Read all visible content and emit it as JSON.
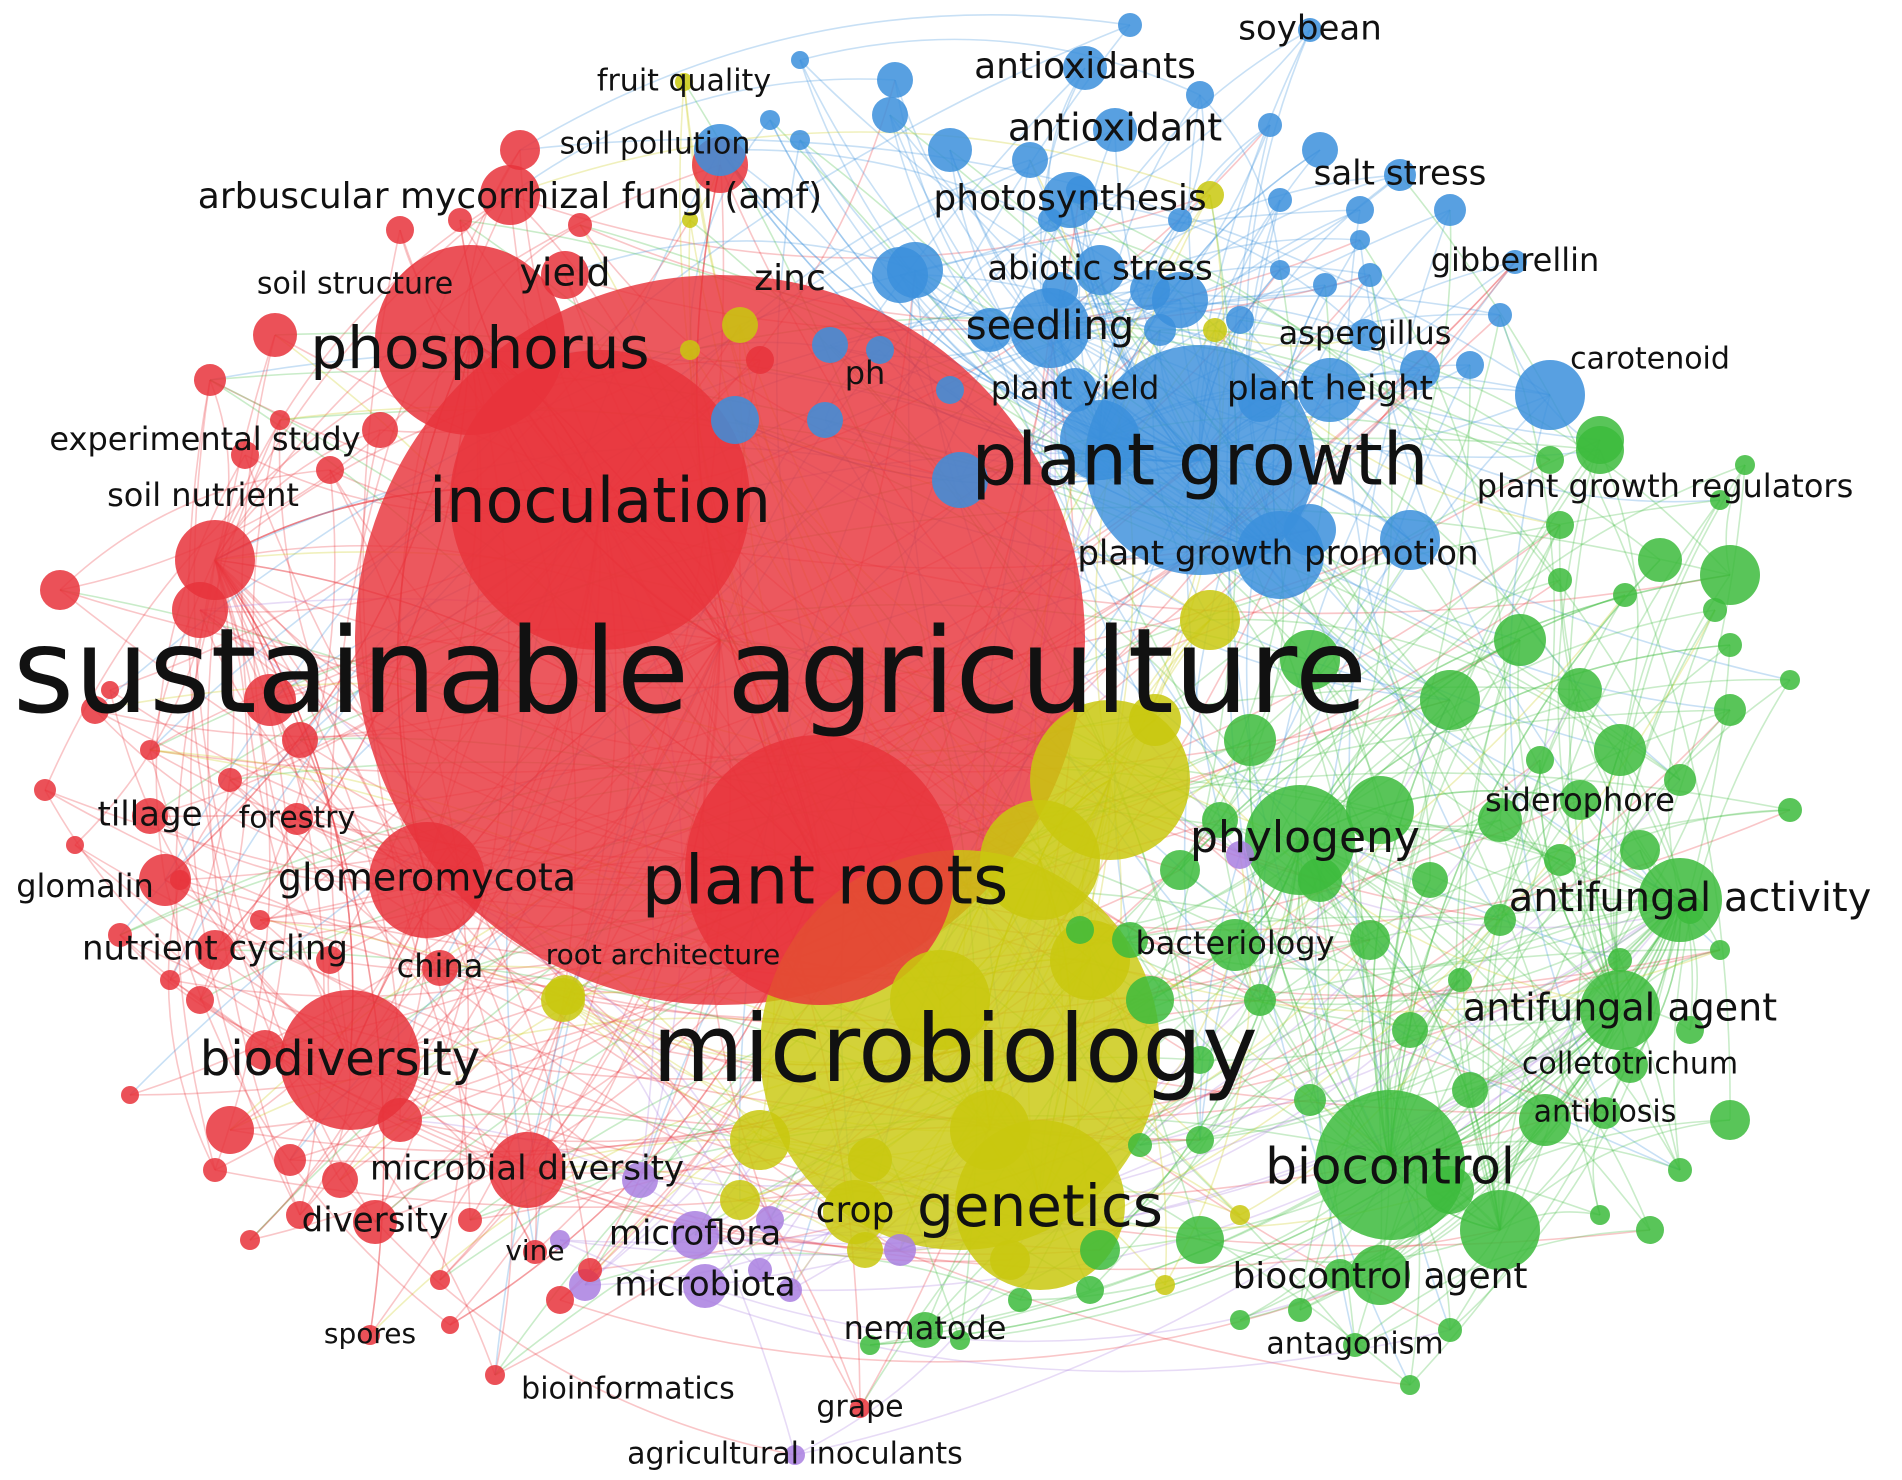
{
  "colors": {
    "red": "#e8333b",
    "blue": "#3b8fdc",
    "green": "#3cbb3c",
    "yellow": "#c9c80e",
    "purple": "#a97fe0",
    "label": "#111111",
    "background": "#ffffff"
  },
  "network": {
    "keywords": [
      {
        "label": "sustainable agriculture",
        "cluster": "red"
      },
      {
        "label": "microbiology",
        "cluster": "yellow"
      },
      {
        "label": "plant roots",
        "cluster": "red"
      },
      {
        "label": "plant growth",
        "cluster": "blue"
      },
      {
        "label": "inoculation",
        "cluster": "red"
      },
      {
        "label": "phosphorus",
        "cluster": "red"
      },
      {
        "label": "genetics",
        "cluster": "yellow"
      },
      {
        "label": "biocontrol",
        "cluster": "green"
      },
      {
        "label": "biodiversity",
        "cluster": "red"
      },
      {
        "label": "phylogeny",
        "cluster": "green"
      },
      {
        "label": "antifungal activity",
        "cluster": "green"
      },
      {
        "label": "antifungal agent",
        "cluster": "green"
      },
      {
        "label": "antioxidant",
        "cluster": "blue"
      },
      {
        "label": "antioxidants",
        "cluster": "blue"
      },
      {
        "label": "photosynthesis",
        "cluster": "blue"
      },
      {
        "label": "seedling",
        "cluster": "blue"
      },
      {
        "label": "abiotic stress",
        "cluster": "blue"
      },
      {
        "label": "arbuscular mycorrhizal fungi (amf)",
        "cluster": "red"
      },
      {
        "label": "glomeromycota",
        "cluster": "red"
      },
      {
        "label": "biocontrol agent",
        "cluster": "green"
      },
      {
        "label": "microbial diversity",
        "cluster": "red"
      },
      {
        "label": "plant growth promotion",
        "cluster": "blue"
      },
      {
        "label": "plant height",
        "cluster": "blue"
      },
      {
        "label": "plant yield",
        "cluster": "blue"
      },
      {
        "label": "plant growth regulators",
        "cluster": "green"
      },
      {
        "label": "salt stress",
        "cluster": "blue"
      },
      {
        "label": "soybean",
        "cluster": "blue"
      },
      {
        "label": "gibberellin",
        "cluster": "blue"
      },
      {
        "label": "aspergillus",
        "cluster": "blue"
      },
      {
        "label": "carotenoid",
        "cluster": "blue"
      },
      {
        "label": "siderophore",
        "cluster": "green"
      },
      {
        "label": "bacteriology",
        "cluster": "green"
      },
      {
        "label": "colletotrichum",
        "cluster": "green"
      },
      {
        "label": "antibiosis",
        "cluster": "green"
      },
      {
        "label": "antagonism",
        "cluster": "green"
      },
      {
        "label": "nematode",
        "cluster": "green"
      },
      {
        "label": "grape",
        "cluster": "red"
      },
      {
        "label": "agricultural inoculants",
        "cluster": "purple"
      },
      {
        "label": "microflora",
        "cluster": "purple"
      },
      {
        "label": "microbiota",
        "cluster": "purple"
      },
      {
        "label": "crop",
        "cluster": "yellow"
      },
      {
        "label": "vine",
        "cluster": "red"
      },
      {
        "label": "diversity",
        "cluster": "red"
      },
      {
        "label": "spores",
        "cluster": "red"
      },
      {
        "label": "bioinformatics",
        "cluster": "red"
      },
      {
        "label": "china",
        "cluster": "red"
      },
      {
        "label": "root architecture",
        "cluster": "yellow"
      },
      {
        "label": "nutrient cycling",
        "cluster": "red"
      },
      {
        "label": "glomalin",
        "cluster": "red"
      },
      {
        "label": "tillage",
        "cluster": "red"
      },
      {
        "label": "forestry",
        "cluster": "red"
      },
      {
        "label": "soil nutrient",
        "cluster": "red"
      },
      {
        "label": "experimental study",
        "cluster": "red"
      },
      {
        "label": "soil structure",
        "cluster": "red"
      },
      {
        "label": "yield",
        "cluster": "red"
      },
      {
        "label": "zinc",
        "cluster": "blue"
      },
      {
        "label": "ph",
        "cluster": "blue"
      },
      {
        "label": "soil pollution",
        "cluster": "blue"
      },
      {
        "label": "fruit quality",
        "cluster": "yellow"
      }
    ]
  }
}
